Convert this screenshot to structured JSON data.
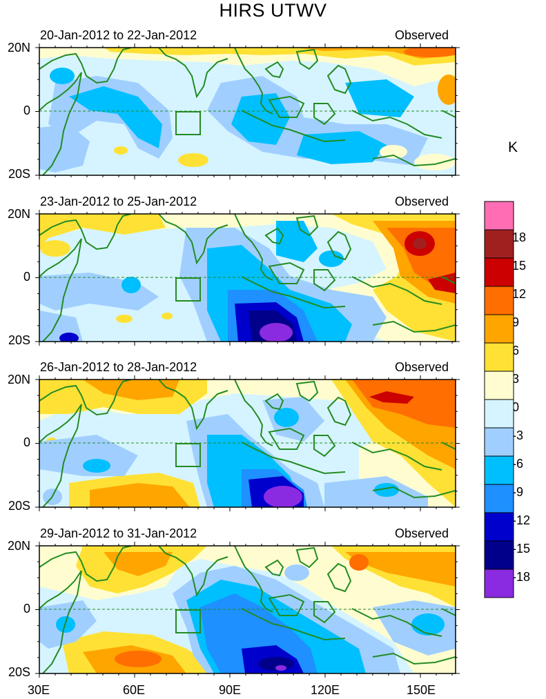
{
  "title": "HIRS UTWV",
  "colorbar": {
    "unit": "K",
    "colors": [
      "#8a2be2",
      "#00008b",
      "#0000cd",
      "#1e90ff",
      "#00bfff",
      "#a0cfff",
      "#d6f4ff",
      "#fffdd0",
      "#ffe135",
      "#ffa500",
      "#ff6e00",
      "#cc0000",
      "#a02020",
      "#ff6eb4"
    ],
    "labels": [
      "-18",
      "-15",
      "-12",
      "-9",
      "-6",
      "-3",
      "0",
      "3",
      "6",
      "9",
      "12",
      "15",
      "18"
    ]
  },
  "axes": {
    "lat_labels": [
      "20N",
      "0",
      "20S"
    ],
    "lon_labels": [
      "30E",
      "60E",
      "90E",
      "120E",
      "150E"
    ]
  },
  "panels": [
    {
      "date_range": "20-Jan-2012 to 22-Jan-2012",
      "label": "Observed"
    },
    {
      "date_range": "23-Jan-2012 to 25-Jan-2012",
      "label": "Observed"
    },
    {
      "date_range": "26-Jan-2012 to 28-Jan-2012",
      "label": "Observed"
    },
    {
      "date_range": "29-Jan-2012 to 31-Jan-2012",
      "label": "Observed"
    }
  ]
}
